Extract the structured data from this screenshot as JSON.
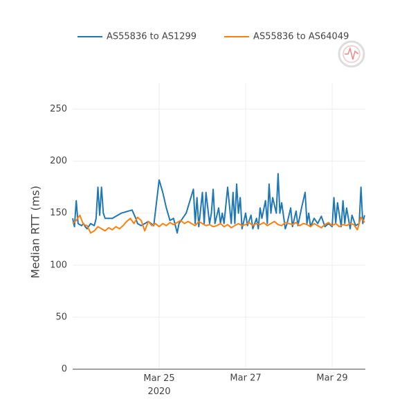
{
  "chart_data": {
    "type": "line",
    "y_label": "Median RTT (ms)",
    "xlim": [
      "2020-03-23T00:00",
      "2020-03-29T18:25"
    ],
    "xticks": [
      {
        "value": "2020-03-25T00:00",
        "label": "Mar 25\n2020"
      },
      {
        "value": "2020-03-27T00:00",
        "label": "Mar 27"
      },
      {
        "value": "2020-03-29T00:00",
        "label": "Mar 29"
      }
    ],
    "ylim": [
      0,
      275
    ],
    "yticks": [
      0,
      50,
      100,
      150,
      200,
      250
    ],
    "grid": true,
    "legend": "top",
    "series": [
      {
        "name": "AS55836 to AS1299",
        "color": "#1f77b4",
        "x": [
          "2020-03-23T00:00",
          "2020-03-23T01:00",
          "2020-03-23T02:00",
          "2020-03-23T03:00",
          "2020-03-23T05:00",
          "2020-03-23T06:00",
          "2020-03-23T07:00",
          "2020-03-23T08:00",
          "2020-03-23T10:00",
          "2020-03-23T12:00",
          "2020-03-23T13:00",
          "2020-03-23T14:00",
          "2020-03-23T15:00",
          "2020-03-23T16:00",
          "2020-03-23T17:00",
          "2020-03-23T18:00",
          "2020-03-23T22:00",
          "2020-03-24T03:00",
          "2020-03-24T09:00",
          "2020-03-24T11:00",
          "2020-03-24T12:00",
          "2020-03-24T14:00",
          "2020-03-24T18:00",
          "2020-03-24T21:00",
          "2020-03-25T00:00",
          "2020-03-25T02:00",
          "2020-03-25T04:00",
          "2020-03-25T06:00",
          "2020-03-25T08:00",
          "2020-03-25T10:00",
          "2020-03-25T11:00",
          "2020-03-25T13:00",
          "2020-03-25T15:00",
          "2020-03-25T19:00",
          "2020-03-25T20:00",
          "2020-03-25T21:00",
          "2020-03-25T22:00",
          "2020-03-26T00:00",
          "2020-03-26T01:00",
          "2020-03-26T02:00",
          "2020-03-26T04:00",
          "2020-03-26T05:00",
          "2020-03-26T06:00",
          "2020-03-26T07:00",
          "2020-03-26T09:00",
          "2020-03-26T10:00",
          "2020-03-26T11:00",
          "2020-03-26T12:00",
          "2020-03-26T14:00",
          "2020-03-26T16:00",
          "2020-03-26T17:00",
          "2020-03-26T18:00",
          "2020-03-26T19:00",
          "2020-03-26T20:00",
          "2020-03-26T21:00",
          "2020-03-26T22:00",
          "2020-03-27T00:00",
          "2020-03-27T01:00",
          "2020-03-27T03:00",
          "2020-03-27T04:00",
          "2020-03-27T06:00",
          "2020-03-27T07:00",
          "2020-03-27T08:00",
          "2020-03-27T09:00",
          "2020-03-27T11:00",
          "2020-03-27T12:00",
          "2020-03-27T13:00",
          "2020-03-27T14:00",
          "2020-03-27T15:00",
          "2020-03-27T17:00",
          "2020-03-27T18:00",
          "2020-03-27T19:00",
          "2020-03-27T20:00",
          "2020-03-27T22:00",
          "2020-03-27T23:00",
          "2020-03-28T01:00",
          "2020-03-28T02:00",
          "2020-03-28T04:00",
          "2020-03-28T05:00",
          "2020-03-28T07:00",
          "2020-03-28T09:00",
          "2020-03-28T10:00",
          "2020-03-28T11:00",
          "2020-03-28T12:00",
          "2020-03-28T14:00",
          "2020-03-28T16:00",
          "2020-03-28T18:00",
          "2020-03-28T20:00",
          "2020-03-28T22:00",
          "2020-03-29T00:00",
          "2020-03-29T01:00",
          "2020-03-29T02:00",
          "2020-03-29T03:00",
          "2020-03-29T05:00",
          "2020-03-29T06:00",
          "2020-03-29T07:00",
          "2020-03-29T08:00",
          "2020-03-29T10:00",
          "2020-03-29T11:00",
          "2020-03-29T13:00",
          "2020-03-29T15:00",
          "2020-03-29T16:00",
          "2020-03-29T17:00",
          "2020-03-29T18:00"
        ],
        "values": [
          145,
          137,
          162,
          140,
          138,
          140,
          137,
          135,
          140,
          138,
          145,
          175,
          148,
          175,
          150,
          145,
          145,
          150,
          153,
          145,
          140,
          138,
          142,
          138,
          182,
          170,
          155,
          143,
          145,
          131,
          140,
          145,
          150,
          173,
          140,
          165,
          137,
          170,
          140,
          170,
          140,
          150,
          173,
          140,
          155,
          140,
          150,
          140,
          175,
          140,
          170,
          140,
          178,
          150,
          165,
          135,
          150,
          138,
          148,
          135,
          145,
          135,
          155,
          145,
          162,
          140,
          178,
          150,
          165,
          150,
          188,
          150,
          160,
          135,
          140,
          155,
          137,
          152,
          138,
          155,
          170,
          140,
          150,
          137,
          145,
          140,
          147,
          137,
          140,
          137,
          165,
          140,
          160,
          137,
          162,
          140,
          155,
          135,
          148,
          138,
          140,
          175,
          140,
          148
        ]
      },
      {
        "name": "AS55836 to AS64049",
        "color": "#ff7f0e",
        "x": [
          "2020-03-23T00:00",
          "2020-03-23T02:00",
          "2020-03-23T04:00",
          "2020-03-23T06:00",
          "2020-03-23T08:00",
          "2020-03-23T10:00",
          "2020-03-23T12:00",
          "2020-03-23T14:00",
          "2020-03-23T16:00",
          "2020-03-23T18:00",
          "2020-03-23T20:00",
          "2020-03-23T22:00",
          "2020-03-24T00:00",
          "2020-03-24T02:00",
          "2020-03-24T04:00",
          "2020-03-24T06:00",
          "2020-03-24T08:00",
          "2020-03-24T10:00",
          "2020-03-24T12:00",
          "2020-03-24T14:00",
          "2020-03-24T16:00",
          "2020-03-24T18:00",
          "2020-03-24T20:00",
          "2020-03-24T22:00",
          "2020-03-25T00:00",
          "2020-03-25T02:00",
          "2020-03-25T04:00",
          "2020-03-25T06:00",
          "2020-03-25T08:00",
          "2020-03-25T10:00",
          "2020-03-25T12:00",
          "2020-03-25T14:00",
          "2020-03-25T16:00",
          "2020-03-25T18:00",
          "2020-03-25T20:00",
          "2020-03-25T22:00",
          "2020-03-26T00:00",
          "2020-03-26T02:00",
          "2020-03-26T04:00",
          "2020-03-26T06:00",
          "2020-03-26T08:00",
          "2020-03-26T10:00",
          "2020-03-26T12:00",
          "2020-03-26T14:00",
          "2020-03-26T16:00",
          "2020-03-26T18:00",
          "2020-03-26T20:00",
          "2020-03-26T22:00",
          "2020-03-27T00:00",
          "2020-03-27T02:00",
          "2020-03-27T04:00",
          "2020-03-27T06:00",
          "2020-03-27T08:00",
          "2020-03-27T10:00",
          "2020-03-27T12:00",
          "2020-03-27T14:00",
          "2020-03-27T16:00",
          "2020-03-27T18:00",
          "2020-03-27T20:00",
          "2020-03-27T22:00",
          "2020-03-28T00:00",
          "2020-03-28T02:00",
          "2020-03-28T04:00",
          "2020-03-28T06:00",
          "2020-03-28T08:00",
          "2020-03-28T10:00",
          "2020-03-28T12:00",
          "2020-03-28T14:00",
          "2020-03-28T16:00",
          "2020-03-28T18:00",
          "2020-03-28T20:00",
          "2020-03-28T22:00",
          "2020-03-29T00:00",
          "2020-03-29T02:00",
          "2020-03-29T04:00",
          "2020-03-29T06:00",
          "2020-03-29T08:00",
          "2020-03-29T10:00",
          "2020-03-29T12:00",
          "2020-03-29T14:00",
          "2020-03-29T16:00",
          "2020-03-29T18:00"
        ],
        "values": [
          140,
          143,
          148,
          139,
          138,
          131,
          133,
          137,
          135,
          133,
          136,
          134,
          137,
          135,
          138,
          142,
          145,
          140,
          146,
          143,
          133,
          142,
          138,
          140,
          137,
          140,
          138,
          141,
          139,
          141,
          143,
          140,
          142,
          140,
          138,
          142,
          140,
          138,
          139,
          137,
          138,
          140,
          137,
          139,
          136,
          138,
          140,
          138,
          139,
          141,
          138,
          140,
          139,
          141,
          138,
          140,
          142,
          139,
          138,
          141,
          140,
          139,
          141,
          138,
          140,
          139,
          137,
          140,
          138,
          136,
          139,
          141,
          138,
          140,
          137,
          139,
          138,
          140,
          139,
          134,
          146,
          141
        ]
      }
    ]
  }
}
